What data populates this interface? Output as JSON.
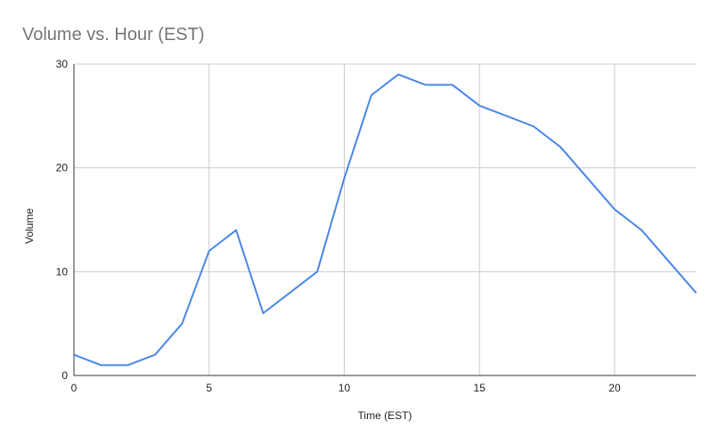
{
  "chart_data": {
    "type": "line",
    "title": "Volume vs. Hour (EST)",
    "xlabel": "Time (EST)",
    "ylabel": "Volume",
    "xlim": [
      0,
      23
    ],
    "ylim": [
      0,
      30
    ],
    "x_ticks": [
      0,
      5,
      10,
      15,
      20
    ],
    "y_ticks": [
      0,
      10,
      20,
      30
    ],
    "grid": true,
    "legend": "none",
    "series": [
      {
        "color": "#4a86e8",
        "x": [
          0,
          1,
          2,
          3,
          4,
          5,
          6,
          7,
          8,
          9,
          10,
          11,
          12,
          13,
          14,
          15,
          16,
          17,
          18,
          19,
          20,
          21,
          22,
          23
        ],
        "y": [
          2,
          1,
          1,
          2,
          5,
          12,
          14,
          6,
          8,
          10,
          19,
          27,
          29,
          28,
          28,
          26,
          25,
          24,
          22,
          19,
          16,
          14,
          11,
          8
        ]
      }
    ]
  }
}
